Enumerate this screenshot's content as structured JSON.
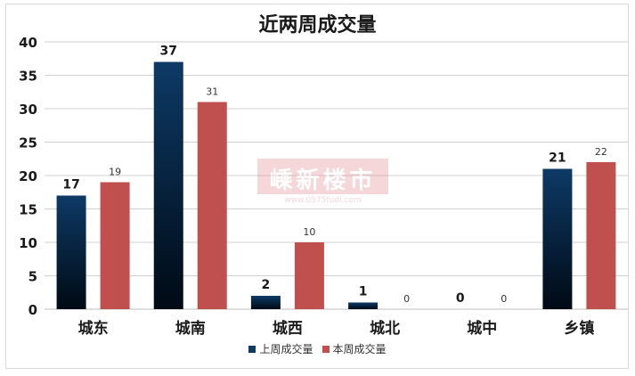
{
  "chart_data": {
    "type": "bar",
    "title": "近两周成交量",
    "categories": [
      "城东",
      "城南",
      "城西",
      "城北",
      "城中",
      "乡镇"
    ],
    "series": [
      {
        "name": "上周成交量",
        "values": [
          17,
          37,
          2,
          1,
          0,
          21
        ]
      },
      {
        "name": "本周成交量",
        "values": [
          19,
          31,
          10,
          0,
          0,
          22
        ]
      }
    ],
    "ylim": [
      0,
      40
    ],
    "yticks": [
      0,
      5,
      10,
      15,
      20,
      25,
      30,
      35,
      40
    ],
    "grid": true,
    "legend_position": "bottom",
    "colors": {
      "series_1_top": "#0d3a66",
      "series_1_bottom": "#000a14",
      "series_2": "#c0504d"
    }
  },
  "watermark": {
    "text": "嵊新楼市",
    "sub": "www.0575fudi.com"
  }
}
